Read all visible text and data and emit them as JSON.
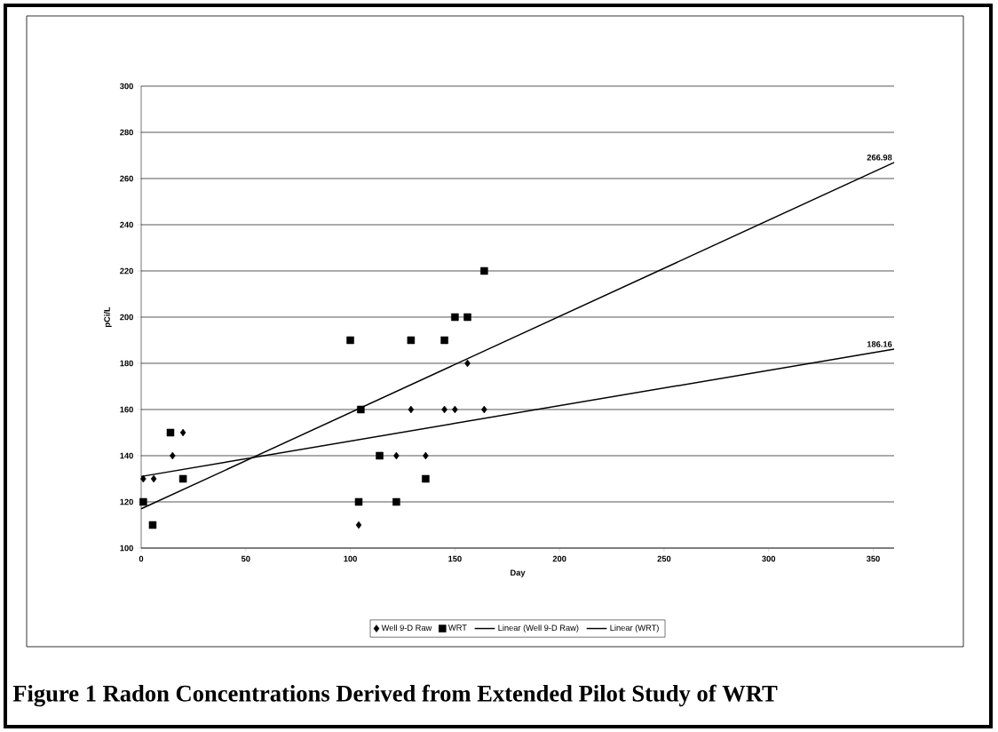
{
  "chart_data": {
    "type": "scatter",
    "title": "Figure 1  Radon Concentrations Derived from Extended Pilot Study of WRT",
    "xlabel": "Day",
    "ylabel": "pCi/L",
    "xlim": [
      0,
      360
    ],
    "xticks": [
      0,
      50,
      100,
      150,
      200,
      250,
      300,
      350
    ],
    "ylim": [
      100,
      300
    ],
    "yticks": [
      100,
      120,
      140,
      160,
      180,
      200,
      220,
      240,
      260,
      280,
      300
    ],
    "grid": "y",
    "legend": "bottom",
    "series": [
      {
        "name": "Well 9-D Raw",
        "marker": "diamond",
        "color": "#000000",
        "x": [
          1,
          6,
          15,
          20,
          104,
          122,
          129,
          136,
          145,
          150,
          156,
          164
        ],
        "values": [
          130,
          130,
          140,
          150,
          110,
          140,
          160,
          140,
          160,
          160,
          180,
          160
        ]
      },
      {
        "name": "WRT",
        "marker": "square",
        "color": "#000000",
        "x": [
          1,
          5.5,
          14,
          20,
          100,
          104,
          105,
          114,
          122,
          129,
          136,
          145,
          150,
          156,
          164
        ],
        "values": [
          120,
          110,
          150,
          130,
          190,
          120,
          160,
          140,
          120,
          190,
          130,
          190,
          200,
          200,
          220
        ]
      },
      {
        "name": "Linear (Well 9-D Raw)",
        "type": "line",
        "marker": "none",
        "color": "#000000",
        "x": [
          0,
          360
        ],
        "values": [
          131,
          186.16
        ]
      },
      {
        "name": "Linear (WRT)",
        "type": "line",
        "marker": "none",
        "color": "#000000",
        "x": [
          0,
          360
        ],
        "values": [
          117,
          266.98
        ]
      }
    ],
    "annotations": [
      {
        "text": "266.98",
        "x": 360,
        "y": 266.98
      },
      {
        "text": "186.16",
        "x": 360,
        "y": 186.16
      }
    ]
  }
}
